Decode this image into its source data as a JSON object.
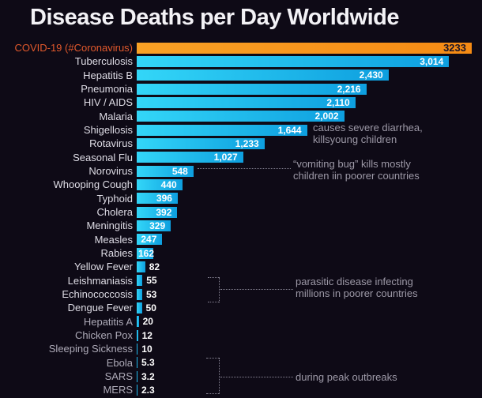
{
  "title": "Disease Deaths per Day Worldwide",
  "colors": {
    "background": "#0e0a16",
    "bar_blue_gradient_start": "#33d6f8",
    "bar_blue_gradient_end": "#0e9fdf",
    "bar_highlight_orange": "#f7941e",
    "covid_label": "#e2592c",
    "label_text": "#dfdde6",
    "label_text_dim": "#aeabb8",
    "annotation_text": "#9d99a7"
  },
  "chart_data": {
    "type": "bar",
    "orientation": "horizontal",
    "title": "Disease Deaths per Day Worldwide",
    "xlim": [
      0,
      3233
    ],
    "max_value": 3233,
    "grid": false,
    "legend": false,
    "bars": [
      {
        "label": "COVID-19 (#Coronavirus)",
        "value": 3233,
        "display": "3233",
        "highlight": true
      },
      {
        "label": "Tuberculosis",
        "value": 3014,
        "display": "3,014"
      },
      {
        "label": "Hepatitis B",
        "value": 2430,
        "display": "2,430"
      },
      {
        "label": "Pneumonia",
        "value": 2216,
        "display": "2,216"
      },
      {
        "label": "HIV / AIDS",
        "value": 2110,
        "display": "2,110"
      },
      {
        "label": "Malaria",
        "value": 2002,
        "display": "2,002"
      },
      {
        "label": "Shigellosis",
        "value": 1644,
        "display": "1,644"
      },
      {
        "label": "Rotavirus",
        "value": 1233,
        "display": "1,233"
      },
      {
        "label": "Seasonal Flu",
        "value": 1027,
        "display": "1,027"
      },
      {
        "label": "Norovirus",
        "value": 548,
        "display": "548"
      },
      {
        "label": "Whooping Cough",
        "value": 440,
        "display": "440"
      },
      {
        "label": "Typhoid",
        "value": 396,
        "display": "396"
      },
      {
        "label": "Cholera",
        "value": 392,
        "display": "392"
      },
      {
        "label": "Meningitis",
        "value": 329,
        "display": "329"
      },
      {
        "label": "Measles",
        "value": 247,
        "display": "247"
      },
      {
        "label": "Rabies",
        "value": 162,
        "display": "162"
      },
      {
        "label": "Yellow Fever",
        "value": 82,
        "display": "82"
      },
      {
        "label": "Leishmaniasis",
        "value": 55,
        "display": "55"
      },
      {
        "label": "Echinococcosis",
        "value": 53,
        "display": "53"
      },
      {
        "label": "Dengue Fever",
        "value": 50,
        "display": "50"
      },
      {
        "label": "Hepatitis A",
        "value": 20,
        "display": "20",
        "dim": true
      },
      {
        "label": "Chicken Pox",
        "value": 12,
        "display": "12",
        "dim": true
      },
      {
        "label": "Sleeping Sickness",
        "value": 10,
        "display": "10",
        "dim": true
      },
      {
        "label": "Ebola",
        "value": 5.3,
        "display": "5.3",
        "dim": true
      },
      {
        "label": "SARS",
        "value": 3.2,
        "display": "3.2",
        "dim": true
      },
      {
        "label": "MERS",
        "value": 2.3,
        "display": "2.3",
        "dim": true
      }
    ],
    "annotations": [
      {
        "target": "Shigellosis",
        "text": [
          "causes severe diarrhea,",
          "killsyoung children"
        ]
      },
      {
        "target": "Norovirus",
        "text": [
          "“vomiting bug” kills mostly",
          "children iin poorer countries"
        ]
      },
      {
        "target": "Leishmaniasis, Echinococcosis, Dengue Fever",
        "text": [
          "parasitic disease infecting",
          "millions in poorer countries"
        ]
      },
      {
        "target": "Ebola, SARS, MERS",
        "text": [
          "during peak outbreaks"
        ]
      }
    ]
  }
}
